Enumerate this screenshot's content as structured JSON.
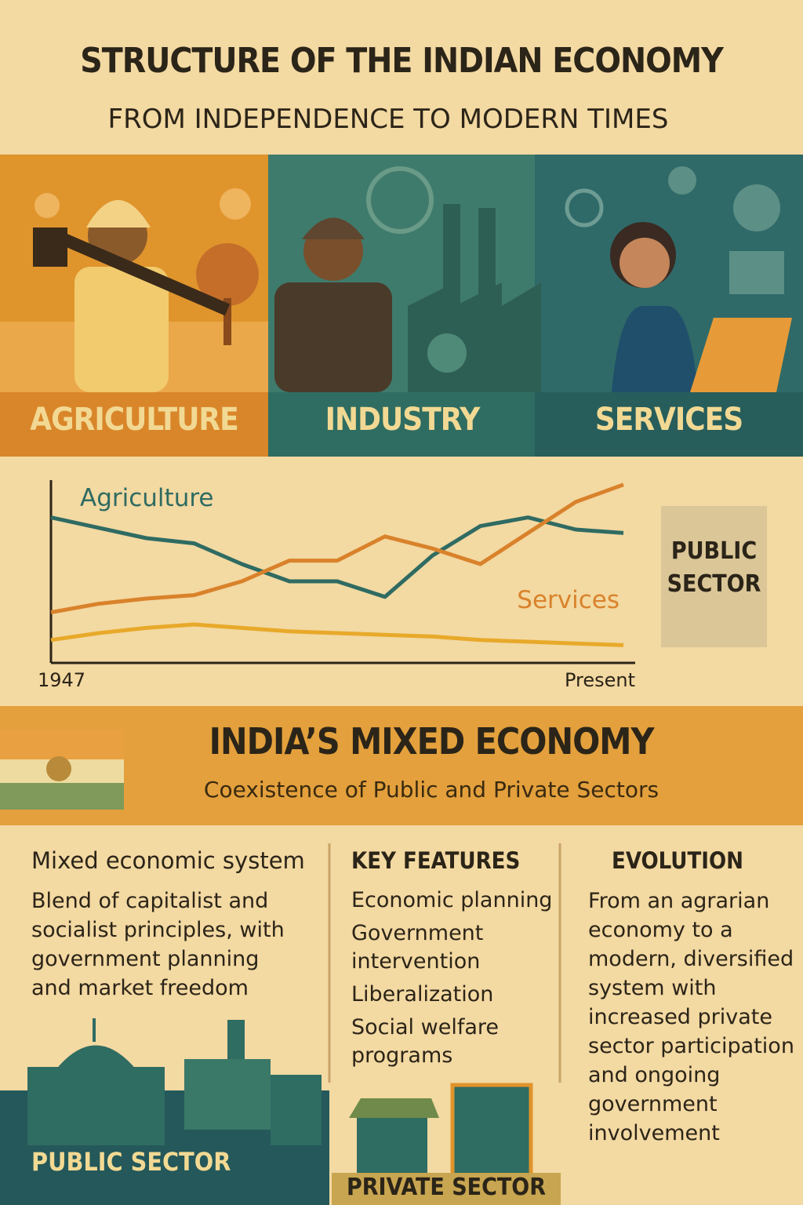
{
  "header": {
    "title": "STRUCTURE OF THE INDIAN ECONOMY",
    "subtitle": "FROM INDEPENDENCE TO MODERN TIMES"
  },
  "sectors": [
    "AGRICULTURE",
    "INDUSTRY",
    "SERVICES"
  ],
  "chart_data": {
    "type": "line",
    "categories": [
      "1947",
      null,
      null,
      null,
      null,
      null,
      null,
      null,
      null,
      null,
      null,
      null,
      "Present"
    ],
    "series": [
      {
        "name": "Agriculture",
        "color": "#2f6b62",
        "values": [
          82,
          76,
          70,
          67,
          55,
          45,
          45,
          36,
          60,
          77,
          82,
          75,
          73
        ]
      },
      {
        "name": "Services",
        "color": "#d9822b",
        "values": [
          27,
          32,
          35,
          37,
          45,
          57,
          57,
          71,
          64,
          55,
          73,
          91,
          101
        ]
      },
      {
        "color": "#e8a92a",
        "values": [
          11,
          15,
          18,
          20,
          18,
          16,
          15,
          14,
          13,
          11,
          10,
          9,
          8
        ]
      }
    ],
    "ylim": [
      0,
      105
    ]
  },
  "chart_note": "PUBLIC SECTOR",
  "mixed": {
    "title": "INDIA’S MIXED ECONOMY",
    "subtitle": "Coexistence of Public and Private Sectors"
  },
  "columns": [
    {
      "heading": "Mixed economic system",
      "text": "Blend of capitalist and socialist principles, with government planning and market freedom"
    },
    {
      "heading": "KEY FEATURES",
      "items": [
        "Economic planning",
        "Government intervention",
        "Liberalization",
        "Social welfare programs"
      ]
    },
    {
      "heading": "EVOLUTION",
      "text": "From an agrarian economy to a modern, diversified system with increased private sector participation and ongoing government involvement"
    }
  ],
  "labels": {
    "public": "PUBLIC SECTOR",
    "private": "PRIVATE SECTOR"
  }
}
